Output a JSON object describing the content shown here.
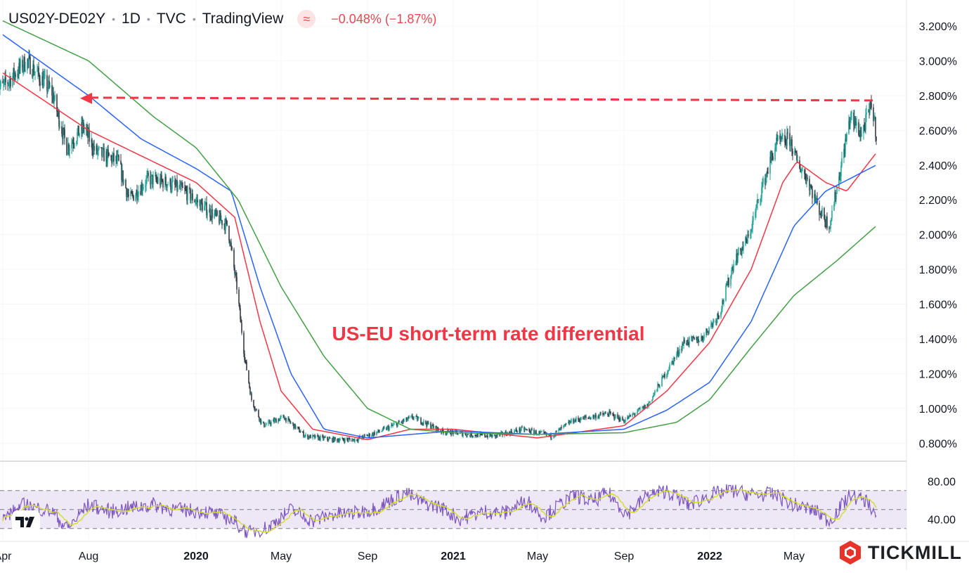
{
  "header": {
    "symbol": "US02Y-DE02Y",
    "interval": "1D",
    "exchange": "TVC",
    "source": "TradingView",
    "change_text": "−0.048% (−1.87%)"
  },
  "brand": {
    "name": "TICKMILL"
  },
  "colors": {
    "candle_up": "#26a69a",
    "candle_down": "#363a45",
    "ma_fast": "#f23645",
    "ma_mid": "#2962ff",
    "ma_slow": "#43a047",
    "rsi_line": "#7e57c2",
    "rsi_signal": "#d4dd2a",
    "rsi_band": "#ede7f6",
    "annotation": "#f23645",
    "grid": "#e0e3eb"
  },
  "chart_data": [
    {
      "type": "line",
      "subtype": "candlestick",
      "series_name": "US02Y-DE02Y",
      "y_scale_unit": "%",
      "ylim": [
        0.7,
        3.35
      ],
      "y_ticks": [
        0.8,
        1.0,
        1.2,
        1.4,
        1.6,
        1.8,
        2.0,
        2.2,
        2.4,
        2.6,
        2.8,
        3.0,
        3.2
      ],
      "y_tick_labels": [
        "0.800%",
        "1.000%",
        "1.200%",
        "1.400%",
        "1.600%",
        "1.800%",
        "2.000%",
        "2.200%",
        "2.400%",
        "2.600%",
        "2.800%",
        "3.000%",
        "3.200%"
      ],
      "x_tick_labels": [
        "Apr",
        "Aug",
        "2020",
        "May",
        "Sep",
        "2021",
        "May",
        "Sep",
        "2022",
        "May"
      ],
      "x_tick_dates": [
        "2019-04-01",
        "2019-08-01",
        "2020-01-01",
        "2020-05-01",
        "2020-09-01",
        "2021-01-01",
        "2021-05-01",
        "2021-09-01",
        "2022-01-01",
        "2022-05-01"
      ],
      "x_range": [
        "2019-04-01",
        "2022-09-30"
      ],
      "price_anchors": [
        [
          "2019-04-01",
          2.85
        ],
        [
          "2019-05-05",
          3.0
        ],
        [
          "2019-06-10",
          2.82
        ],
        [
          "2019-07-01",
          2.5
        ],
        [
          "2019-07-25",
          2.62
        ],
        [
          "2019-08-10",
          2.48
        ],
        [
          "2019-09-12",
          2.42
        ],
        [
          "2019-09-28",
          2.2
        ],
        [
          "2019-10-25",
          2.32
        ],
        [
          "2019-11-20",
          2.3
        ],
        [
          "2019-12-15",
          2.25
        ],
        [
          "2020-01-15",
          2.15
        ],
        [
          "2020-02-15",
          2.05
        ],
        [
          "2020-02-28",
          1.7
        ],
        [
          "2020-03-10",
          1.3
        ],
        [
          "2020-03-20",
          1.05
        ],
        [
          "2020-04-05",
          0.9
        ],
        [
          "2020-05-05",
          0.95
        ],
        [
          "2020-06-05",
          0.84
        ],
        [
          "2020-07-15",
          0.82
        ],
        [
          "2020-08-15",
          0.82
        ],
        [
          "2020-09-20",
          0.87
        ],
        [
          "2020-11-05",
          0.95
        ],
        [
          "2020-12-15",
          0.87
        ],
        [
          "2021-01-20",
          0.85
        ],
        [
          "2021-03-01",
          0.84
        ],
        [
          "2021-04-10",
          0.88
        ],
        [
          "2021-05-20",
          0.84
        ],
        [
          "2021-06-20",
          0.93
        ],
        [
          "2021-08-10",
          0.97
        ],
        [
          "2021-09-01",
          0.93
        ],
        [
          "2021-10-05",
          1.02
        ],
        [
          "2021-10-30",
          1.2
        ],
        [
          "2021-11-25",
          1.38
        ],
        [
          "2021-12-20",
          1.4
        ],
        [
          "2022-01-15",
          1.55
        ],
        [
          "2022-02-05",
          1.85
        ],
        [
          "2022-02-25",
          1.98
        ],
        [
          "2022-03-15",
          2.25
        ],
        [
          "2022-04-05",
          2.52
        ],
        [
          "2022-04-25",
          2.55
        ],
        [
          "2022-05-05",
          2.42
        ],
        [
          "2022-05-20",
          2.32
        ],
        [
          "2022-06-05",
          2.15
        ],
        [
          "2022-06-20",
          2.05
        ],
        [
          "2022-07-05",
          2.35
        ],
        [
          "2022-07-20",
          2.68
        ],
        [
          "2022-08-05",
          2.58
        ],
        [
          "2022-08-20",
          2.75
        ],
        [
          "2022-08-26",
          2.58
        ]
      ],
      "moving_averages": [
        {
          "color": "#f23645",
          "anchors": [
            [
              "2019-04-01",
              2.93
            ],
            [
              "2019-08-01",
              2.6
            ],
            [
              "2020-01-01",
              2.3
            ],
            [
              "2020-02-25",
              2.1
            ],
            [
              "2020-04-01",
              1.5
            ],
            [
              "2020-05-01",
              1.1
            ],
            [
              "2020-06-15",
              0.88
            ],
            [
              "2020-09-01",
              0.82
            ],
            [
              "2020-11-01",
              0.88
            ],
            [
              "2021-01-01",
              0.88
            ],
            [
              "2021-05-01",
              0.83
            ],
            [
              "2021-09-01",
              0.9
            ],
            [
              "2021-11-01",
              1.1
            ],
            [
              "2022-01-01",
              1.38
            ],
            [
              "2022-03-01",
              1.8
            ],
            [
              "2022-04-15",
              2.3
            ],
            [
              "2022-05-05",
              2.42
            ],
            [
              "2022-06-15",
              2.3
            ],
            [
              "2022-07-15",
              2.25
            ],
            [
              "2022-08-26",
              2.47
            ]
          ]
        },
        {
          "color": "#2962ff",
          "anchors": [
            [
              "2019-04-01",
              3.15
            ],
            [
              "2019-08-01",
              2.8
            ],
            [
              "2019-10-15",
              2.55
            ],
            [
              "2020-01-01",
              2.38
            ],
            [
              "2020-02-20",
              2.25
            ],
            [
              "2020-04-01",
              1.7
            ],
            [
              "2020-05-15",
              1.2
            ],
            [
              "2020-07-01",
              0.88
            ],
            [
              "2020-09-01",
              0.83
            ],
            [
              "2021-01-01",
              0.87
            ],
            [
              "2021-05-01",
              0.85
            ],
            [
              "2021-09-01",
              0.88
            ],
            [
              "2021-11-01",
              0.99
            ],
            [
              "2022-01-01",
              1.15
            ],
            [
              "2022-03-01",
              1.5
            ],
            [
              "2022-05-01",
              2.05
            ],
            [
              "2022-06-15",
              2.25
            ],
            [
              "2022-08-26",
              2.4
            ]
          ]
        },
        {
          "color": "#43a047",
          "anchors": [
            [
              "2019-04-01",
              3.23
            ],
            [
              "2019-08-01",
              3.0
            ],
            [
              "2019-11-01",
              2.68
            ],
            [
              "2020-01-01",
              2.5
            ],
            [
              "2020-03-01",
              2.2
            ],
            [
              "2020-05-01",
              1.7
            ],
            [
              "2020-07-01",
              1.3
            ],
            [
              "2020-09-01",
              1.0
            ],
            [
              "2020-11-01",
              0.88
            ],
            [
              "2021-01-01",
              0.86
            ],
            [
              "2021-05-01",
              0.85
            ],
            [
              "2021-09-01",
              0.86
            ],
            [
              "2021-11-15",
              0.92
            ],
            [
              "2022-01-01",
              1.05
            ],
            [
              "2022-03-01",
              1.35
            ],
            [
              "2022-05-01",
              1.65
            ],
            [
              "2022-07-01",
              1.85
            ],
            [
              "2022-08-26",
              2.05
            ]
          ]
        }
      ],
      "annotation": {
        "text": "US-EU short-term rate differential",
        "level_line_value": 2.78,
        "level_line_from": "2019-07-20",
        "level_line_to": "2022-08-22"
      }
    },
    {
      "type": "line",
      "series_name": "RSI",
      "ylim": [
        18,
        98
      ],
      "y_ticks": [
        40,
        80
      ],
      "y_tick_labels": [
        "40.00",
        "80.00"
      ],
      "band": [
        30,
        70
      ],
      "midline": 50,
      "anchors": [
        [
          "2019-04-01",
          40
        ],
        [
          "2019-05-01",
          55
        ],
        [
          "2019-06-10",
          48
        ],
        [
          "2019-07-01",
          30
        ],
        [
          "2019-08-01",
          55
        ],
        [
          "2019-09-01",
          48
        ],
        [
          "2019-10-01",
          52
        ],
        [
          "2019-11-01",
          55
        ],
        [
          "2019-12-01",
          50
        ],
        [
          "2020-01-15",
          48
        ],
        [
          "2020-02-20",
          40
        ],
        [
          "2020-03-15",
          25
        ],
        [
          "2020-04-15",
          32
        ],
        [
          "2020-05-15",
          50
        ],
        [
          "2020-06-15",
          38
        ],
        [
          "2020-07-15",
          45
        ],
        [
          "2020-08-15",
          46
        ],
        [
          "2020-09-15",
          52
        ],
        [
          "2020-10-25",
          68
        ],
        [
          "2020-11-15",
          58
        ],
        [
          "2020-12-15",
          52
        ],
        [
          "2021-01-10",
          40
        ],
        [
          "2021-02-15",
          48
        ],
        [
          "2021-03-15",
          46
        ],
        [
          "2021-04-15",
          60
        ],
        [
          "2021-05-10",
          42
        ],
        [
          "2021-06-01",
          55
        ],
        [
          "2021-06-25",
          65
        ],
        [
          "2021-07-15",
          58
        ],
        [
          "2021-08-10",
          67
        ],
        [
          "2021-09-05",
          45
        ],
        [
          "2021-10-05",
          65
        ],
        [
          "2021-11-01",
          70
        ],
        [
          "2021-12-01",
          55
        ],
        [
          "2022-01-05",
          66
        ],
        [
          "2022-02-01",
          70
        ],
        [
          "2022-03-01",
          66
        ],
        [
          "2022-04-01",
          66
        ],
        [
          "2022-05-01",
          55
        ],
        [
          "2022-06-01",
          48
        ],
        [
          "2022-06-20",
          38
        ],
        [
          "2022-07-20",
          65
        ],
        [
          "2022-08-15",
          58
        ],
        [
          "2022-08-26",
          42
        ]
      ]
    }
  ]
}
